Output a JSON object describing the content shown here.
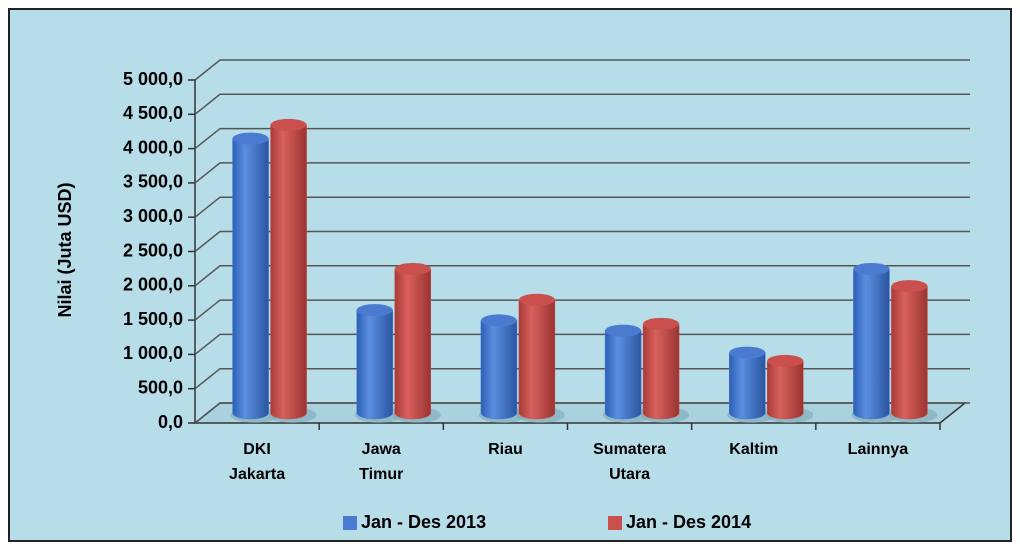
{
  "chart_data": {
    "type": "bar3d",
    "y_label": "Nilai (Juta USD)",
    "categories": [
      "DKI Jakarta",
      "Jawa Timur",
      "Riau",
      "Sumatera Utara",
      "Kaltim",
      "Lainnya"
    ],
    "series": [
      {
        "name": "Jan - Des 2013",
        "color": "#4a7bd0",
        "values": [
          4000,
          1500,
          1350,
          1200,
          880,
          2100
        ]
      },
      {
        "name": "Jan - Des 2014",
        "color": "#c9504c",
        "values": [
          4200,
          2100,
          1650,
          1300,
          760,
          1850
        ]
      }
    ],
    "ylim": [
      0,
      5000
    ],
    "yticks": [
      {
        "value": 0,
        "label": "0,0"
      },
      {
        "value": 500,
        "label": "500,0"
      },
      {
        "value": 1000,
        "label": "1 000,0"
      },
      {
        "value": 1500,
        "label": "1 500,0"
      },
      {
        "value": 2000,
        "label": "2 000,0"
      },
      {
        "value": 2500,
        "label": "2 500,0"
      },
      {
        "value": 3000,
        "label": "3 000,0"
      },
      {
        "value": 3500,
        "label": "3 500,0"
      },
      {
        "value": 4000,
        "label": "4 000,0"
      },
      {
        "value": 4500,
        "label": "4 500,0"
      },
      {
        "value": 5000,
        "label": "5 000,0"
      }
    ],
    "grid": true
  }
}
